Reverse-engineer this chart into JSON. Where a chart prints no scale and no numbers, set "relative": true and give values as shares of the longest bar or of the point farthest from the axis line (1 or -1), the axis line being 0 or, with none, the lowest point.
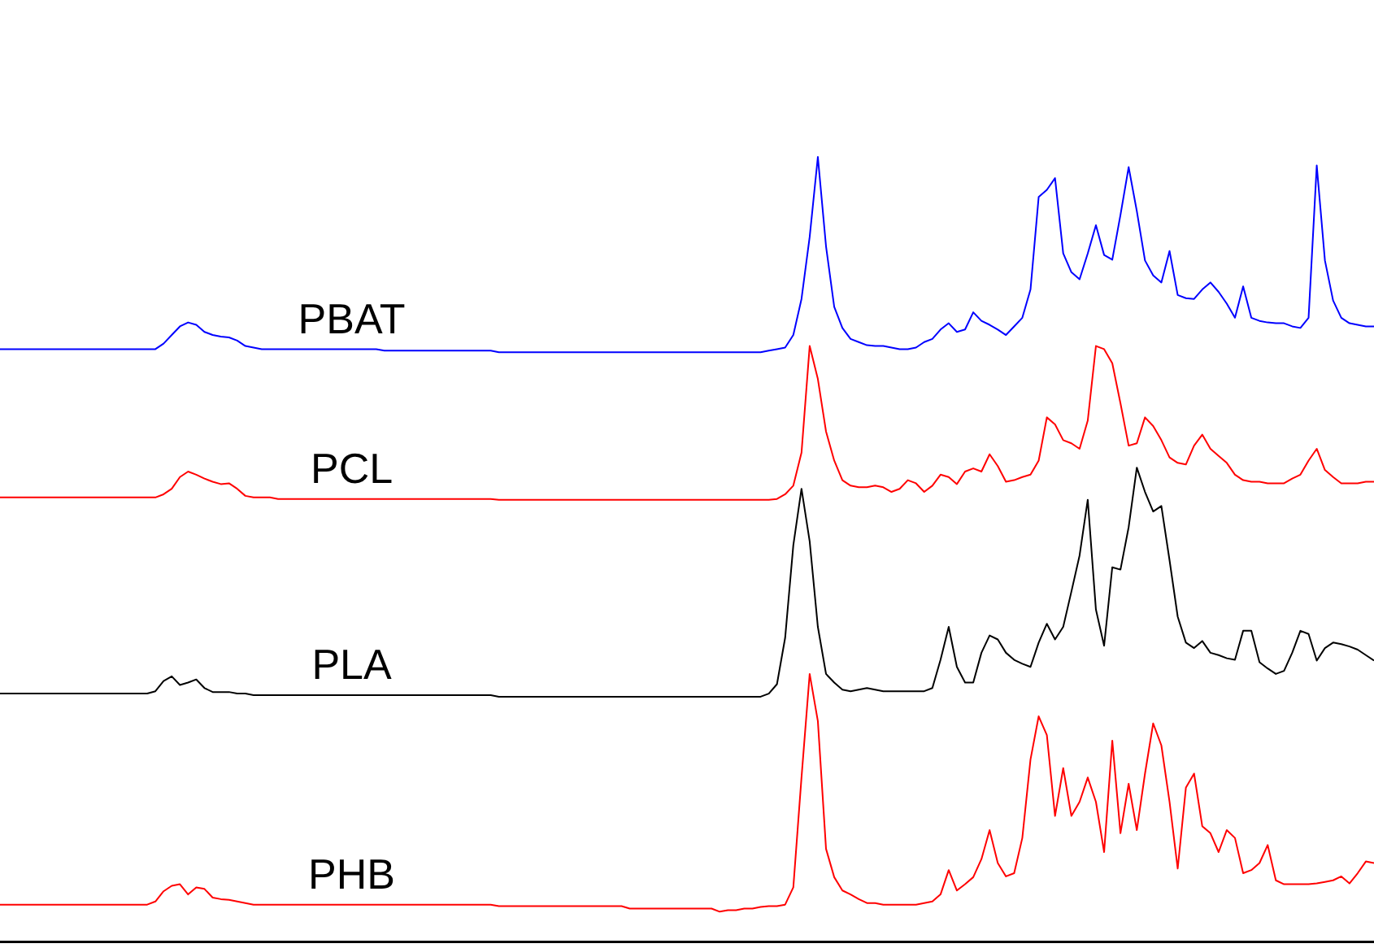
{
  "chart_data": {
    "type": "line",
    "relative": true,
    "grid": false,
    "legend": false,
    "tick_labels": false,
    "marker": "none",
    "line_style": "solid",
    "categories": [
      null,
      null,
      null,
      null,
      null,
      null,
      null,
      null,
      null,
      null,
      null,
      null,
      null,
      null,
      null,
      null,
      null,
      null,
      null,
      null,
      null,
      null,
      null,
      null,
      null,
      null,
      null,
      null,
      null,
      null,
      null,
      null,
      null,
      null,
      null,
      null,
      null,
      null,
      null,
      null,
      null,
      null,
      null,
      null,
      null,
      null,
      null,
      null,
      null,
      null,
      null,
      null,
      null,
      null,
      null,
      null,
      null,
      null,
      null,
      null,
      null,
      null,
      null,
      null,
      null,
      null,
      null,
      null,
      null,
      null,
      null,
      null,
      null,
      null,
      null,
      null,
      null,
      null,
      null,
      null,
      null,
      null,
      null,
      null,
      null,
      null,
      null,
      null,
      null,
      null,
      null,
      null,
      null,
      null,
      null,
      null,
      null,
      null,
      null,
      null,
      null,
      null,
      null,
      null,
      null,
      null,
      null,
      null,
      null,
      null,
      null,
      null,
      null,
      null,
      null,
      null,
      null,
      null,
      null,
      null,
      null,
      null,
      null,
      null,
      null,
      null,
      null,
      null,
      null,
      null,
      null,
      null,
      null,
      null,
      null,
      null,
      null,
      null,
      null,
      null,
      null,
      null,
      null,
      null,
      null,
      null,
      null,
      null,
      null,
      null,
      null,
      null,
      null,
      null,
      null,
      null,
      null,
      null,
      null,
      null,
      null,
      null,
      null,
      null,
      null,
      null,
      null,
      null,
      null
    ],
    "series": [
      {
        "name": "PBAT",
        "color": "#0000ff",
        "values": [
          0.755,
          0.755,
          0.755,
          0.755,
          0.755,
          0.755,
          0.755,
          0.755,
          0.755,
          0.755,
          0.755,
          0.755,
          0.755,
          0.755,
          0.755,
          0.755,
          0.755,
          0.755,
          0.755,
          0.755,
          0.762,
          0.773,
          0.784,
          0.789,
          0.786,
          0.777,
          0.773,
          0.771,
          0.77,
          0.766,
          0.759,
          0.757,
          0.755,
          0.755,
          0.755,
          0.755,
          0.755,
          0.755,
          0.755,
          0.755,
          0.755,
          0.755,
          0.755,
          0.755,
          0.755,
          0.755,
          0.755,
          0.753,
          0.753,
          0.753,
          0.753,
          0.753,
          0.753,
          0.753,
          0.753,
          0.753,
          0.753,
          0.753,
          0.753,
          0.753,
          0.753,
          0.751,
          0.751,
          0.751,
          0.751,
          0.751,
          0.751,
          0.751,
          0.751,
          0.751,
          0.751,
          0.751,
          0.751,
          0.751,
          0.751,
          0.751,
          0.751,
          0.751,
          0.751,
          0.751,
          0.751,
          0.751,
          0.751,
          0.751,
          0.751,
          0.751,
          0.751,
          0.751,
          0.751,
          0.751,
          0.751,
          0.751,
          0.751,
          0.751,
          0.753,
          0.755,
          0.757,
          0.773,
          0.819,
          0.898,
          1.0,
          0.886,
          0.809,
          0.782,
          0.768,
          0.764,
          0.76,
          0.759,
          0.759,
          0.757,
          0.755,
          0.755,
          0.757,
          0.764,
          0.768,
          0.78,
          0.788,
          0.777,
          0.78,
          0.802,
          0.791,
          0.786,
          0.78,
          0.773,
          0.784,
          0.795,
          0.831,
          0.949,
          0.958,
          0.973,
          0.877,
          0.853,
          0.844,
          0.877,
          0.913,
          0.875,
          0.869,
          0.926,
          0.987,
          0.931,
          0.868,
          0.849,
          0.84,
          0.88,
          0.824,
          0.82,
          0.819,
          0.831,
          0.84,
          0.828,
          0.813,
          0.795,
          0.835,
          0.795,
          0.791,
          0.789,
          0.788,
          0.788,
          0.784,
          0.782,
          0.795,
          0.989,
          0.868,
          0.817,
          0.795,
          0.788,
          0.786,
          0.784,
          0.784
        ]
      },
      {
        "name": "PCL",
        "color": "#ff0000",
        "values": [
          0.566,
          0.566,
          0.566,
          0.566,
          0.566,
          0.566,
          0.566,
          0.566,
          0.566,
          0.566,
          0.566,
          0.566,
          0.566,
          0.566,
          0.566,
          0.566,
          0.566,
          0.566,
          0.566,
          0.566,
          0.57,
          0.577,
          0.592,
          0.599,
          0.595,
          0.59,
          0.586,
          0.583,
          0.584,
          0.577,
          0.568,
          0.566,
          0.566,
          0.566,
          0.564,
          0.564,
          0.564,
          0.564,
          0.564,
          0.564,
          0.564,
          0.564,
          0.564,
          0.564,
          0.564,
          0.564,
          0.564,
          0.564,
          0.564,
          0.564,
          0.564,
          0.564,
          0.564,
          0.564,
          0.564,
          0.564,
          0.564,
          0.564,
          0.564,
          0.564,
          0.564,
          0.563,
          0.563,
          0.563,
          0.563,
          0.563,
          0.563,
          0.563,
          0.563,
          0.563,
          0.563,
          0.563,
          0.563,
          0.563,
          0.563,
          0.563,
          0.563,
          0.563,
          0.563,
          0.563,
          0.563,
          0.563,
          0.563,
          0.563,
          0.563,
          0.563,
          0.563,
          0.563,
          0.563,
          0.563,
          0.563,
          0.563,
          0.563,
          0.563,
          0.563,
          0.564,
          0.57,
          0.581,
          0.623,
          0.759,
          0.717,
          0.65,
          0.613,
          0.588,
          0.581,
          0.579,
          0.579,
          0.581,
          0.579,
          0.573,
          0.577,
          0.588,
          0.584,
          0.573,
          0.581,
          0.595,
          0.592,
          0.583,
          0.599,
          0.603,
          0.599,
          0.621,
          0.606,
          0.586,
          0.588,
          0.592,
          0.595,
          0.613,
          0.668,
          0.659,
          0.639,
          0.635,
          0.628,
          0.664,
          0.759,
          0.755,
          0.737,
          0.686,
          0.632,
          0.635,
          0.668,
          0.657,
          0.639,
          0.617,
          0.61,
          0.608,
          0.632,
          0.646,
          0.628,
          0.619,
          0.61,
          0.595,
          0.588,
          0.586,
          0.586,
          0.584,
          0.584,
          0.584,
          0.59,
          0.595,
          0.613,
          0.628,
          0.601,
          0.592,
          0.584,
          0.584,
          0.584,
          0.586,
          0.586
        ]
      },
      {
        "name": "PLA",
        "color": "#000000",
        "values": [
          0.316,
          0.316,
          0.316,
          0.316,
          0.316,
          0.316,
          0.316,
          0.316,
          0.316,
          0.316,
          0.316,
          0.316,
          0.316,
          0.316,
          0.316,
          0.316,
          0.316,
          0.316,
          0.316,
          0.319,
          0.332,
          0.338,
          0.327,
          0.33,
          0.334,
          0.323,
          0.318,
          0.318,
          0.318,
          0.316,
          0.316,
          0.314,
          0.314,
          0.314,
          0.314,
          0.314,
          0.314,
          0.314,
          0.314,
          0.314,
          0.314,
          0.314,
          0.314,
          0.314,
          0.314,
          0.314,
          0.314,
          0.314,
          0.314,
          0.314,
          0.314,
          0.314,
          0.314,
          0.314,
          0.314,
          0.314,
          0.314,
          0.314,
          0.314,
          0.314,
          0.314,
          0.312,
          0.312,
          0.312,
          0.312,
          0.312,
          0.312,
          0.312,
          0.312,
          0.312,
          0.312,
          0.312,
          0.312,
          0.312,
          0.312,
          0.312,
          0.312,
          0.312,
          0.312,
          0.312,
          0.312,
          0.312,
          0.312,
          0.312,
          0.312,
          0.312,
          0.312,
          0.312,
          0.312,
          0.312,
          0.312,
          0.312,
          0.312,
          0.312,
          0.316,
          0.328,
          0.387,
          0.505,
          0.577,
          0.51,
          0.401,
          0.341,
          0.33,
          0.321,
          0.319,
          0.321,
          0.323,
          0.321,
          0.319,
          0.319,
          0.319,
          0.319,
          0.319,
          0.319,
          0.323,
          0.359,
          0.401,
          0.35,
          0.33,
          0.33,
          0.368,
          0.39,
          0.385,
          0.368,
          0.359,
          0.354,
          0.35,
          0.381,
          0.405,
          0.385,
          0.401,
          0.446,
          0.492,
          0.563,
          0.423,
          0.377,
          0.477,
          0.474,
          0.528,
          0.604,
          0.573,
          0.548,
          0.555,
          0.486,
          0.414,
          0.381,
          0.374,
          0.383,
          0.368,
          0.365,
          0.361,
          0.359,
          0.396,
          0.396,
          0.356,
          0.348,
          0.341,
          0.345,
          0.368,
          0.396,
          0.392,
          0.358,
          0.374,
          0.381,
          0.379,
          0.376,
          0.372,
          0.365,
          0.358
        ]
      },
      {
        "name": "PHB",
        "color": "#ff0000",
        "values": [
          0.047,
          0.047,
          0.047,
          0.047,
          0.047,
          0.047,
          0.047,
          0.047,
          0.047,
          0.047,
          0.047,
          0.047,
          0.047,
          0.047,
          0.047,
          0.047,
          0.047,
          0.047,
          0.047,
          0.051,
          0.064,
          0.071,
          0.073,
          0.06,
          0.069,
          0.067,
          0.056,
          0.054,
          0.053,
          0.051,
          0.049,
          0.047,
          0.047,
          0.047,
          0.047,
          0.047,
          0.047,
          0.047,
          0.047,
          0.047,
          0.047,
          0.047,
          0.047,
          0.047,
          0.047,
          0.047,
          0.047,
          0.047,
          0.047,
          0.047,
          0.047,
          0.047,
          0.047,
          0.047,
          0.047,
          0.047,
          0.047,
          0.047,
          0.047,
          0.047,
          0.047,
          0.045,
          0.045,
          0.045,
          0.045,
          0.045,
          0.045,
          0.045,
          0.045,
          0.045,
          0.045,
          0.045,
          0.045,
          0.045,
          0.045,
          0.045,
          0.045,
          0.042,
          0.042,
          0.042,
          0.042,
          0.042,
          0.042,
          0.042,
          0.042,
          0.042,
          0.042,
          0.042,
          0.038,
          0.04,
          0.04,
          0.042,
          0.042,
          0.044,
          0.045,
          0.045,
          0.047,
          0.069,
          0.209,
          0.341,
          0.281,
          0.118,
          0.082,
          0.065,
          0.06,
          0.054,
          0.049,
          0.049,
          0.047,
          0.047,
          0.047,
          0.047,
          0.047,
          0.049,
          0.051,
          0.06,
          0.091,
          0.065,
          0.073,
          0.082,
          0.105,
          0.142,
          0.1,
          0.083,
          0.087,
          0.132,
          0.232,
          0.287,
          0.263,
          0.16,
          0.221,
          0.16,
          0.178,
          0.209,
          0.178,
          0.114,
          0.256,
          0.138,
          0.201,
          0.142,
          0.214,
          0.278,
          0.25,
          0.178,
          0.093,
          0.196,
          0.214,
          0.147,
          0.138,
          0.114,
          0.142,
          0.132,
          0.087,
          0.091,
          0.1,
          0.123,
          0.078,
          0.073,
          0.073,
          0.073,
          0.073,
          0.074,
          0.076,
          0.078,
          0.083,
          0.074,
          0.087,
          0.102,
          0.1
        ]
      }
    ]
  }
}
